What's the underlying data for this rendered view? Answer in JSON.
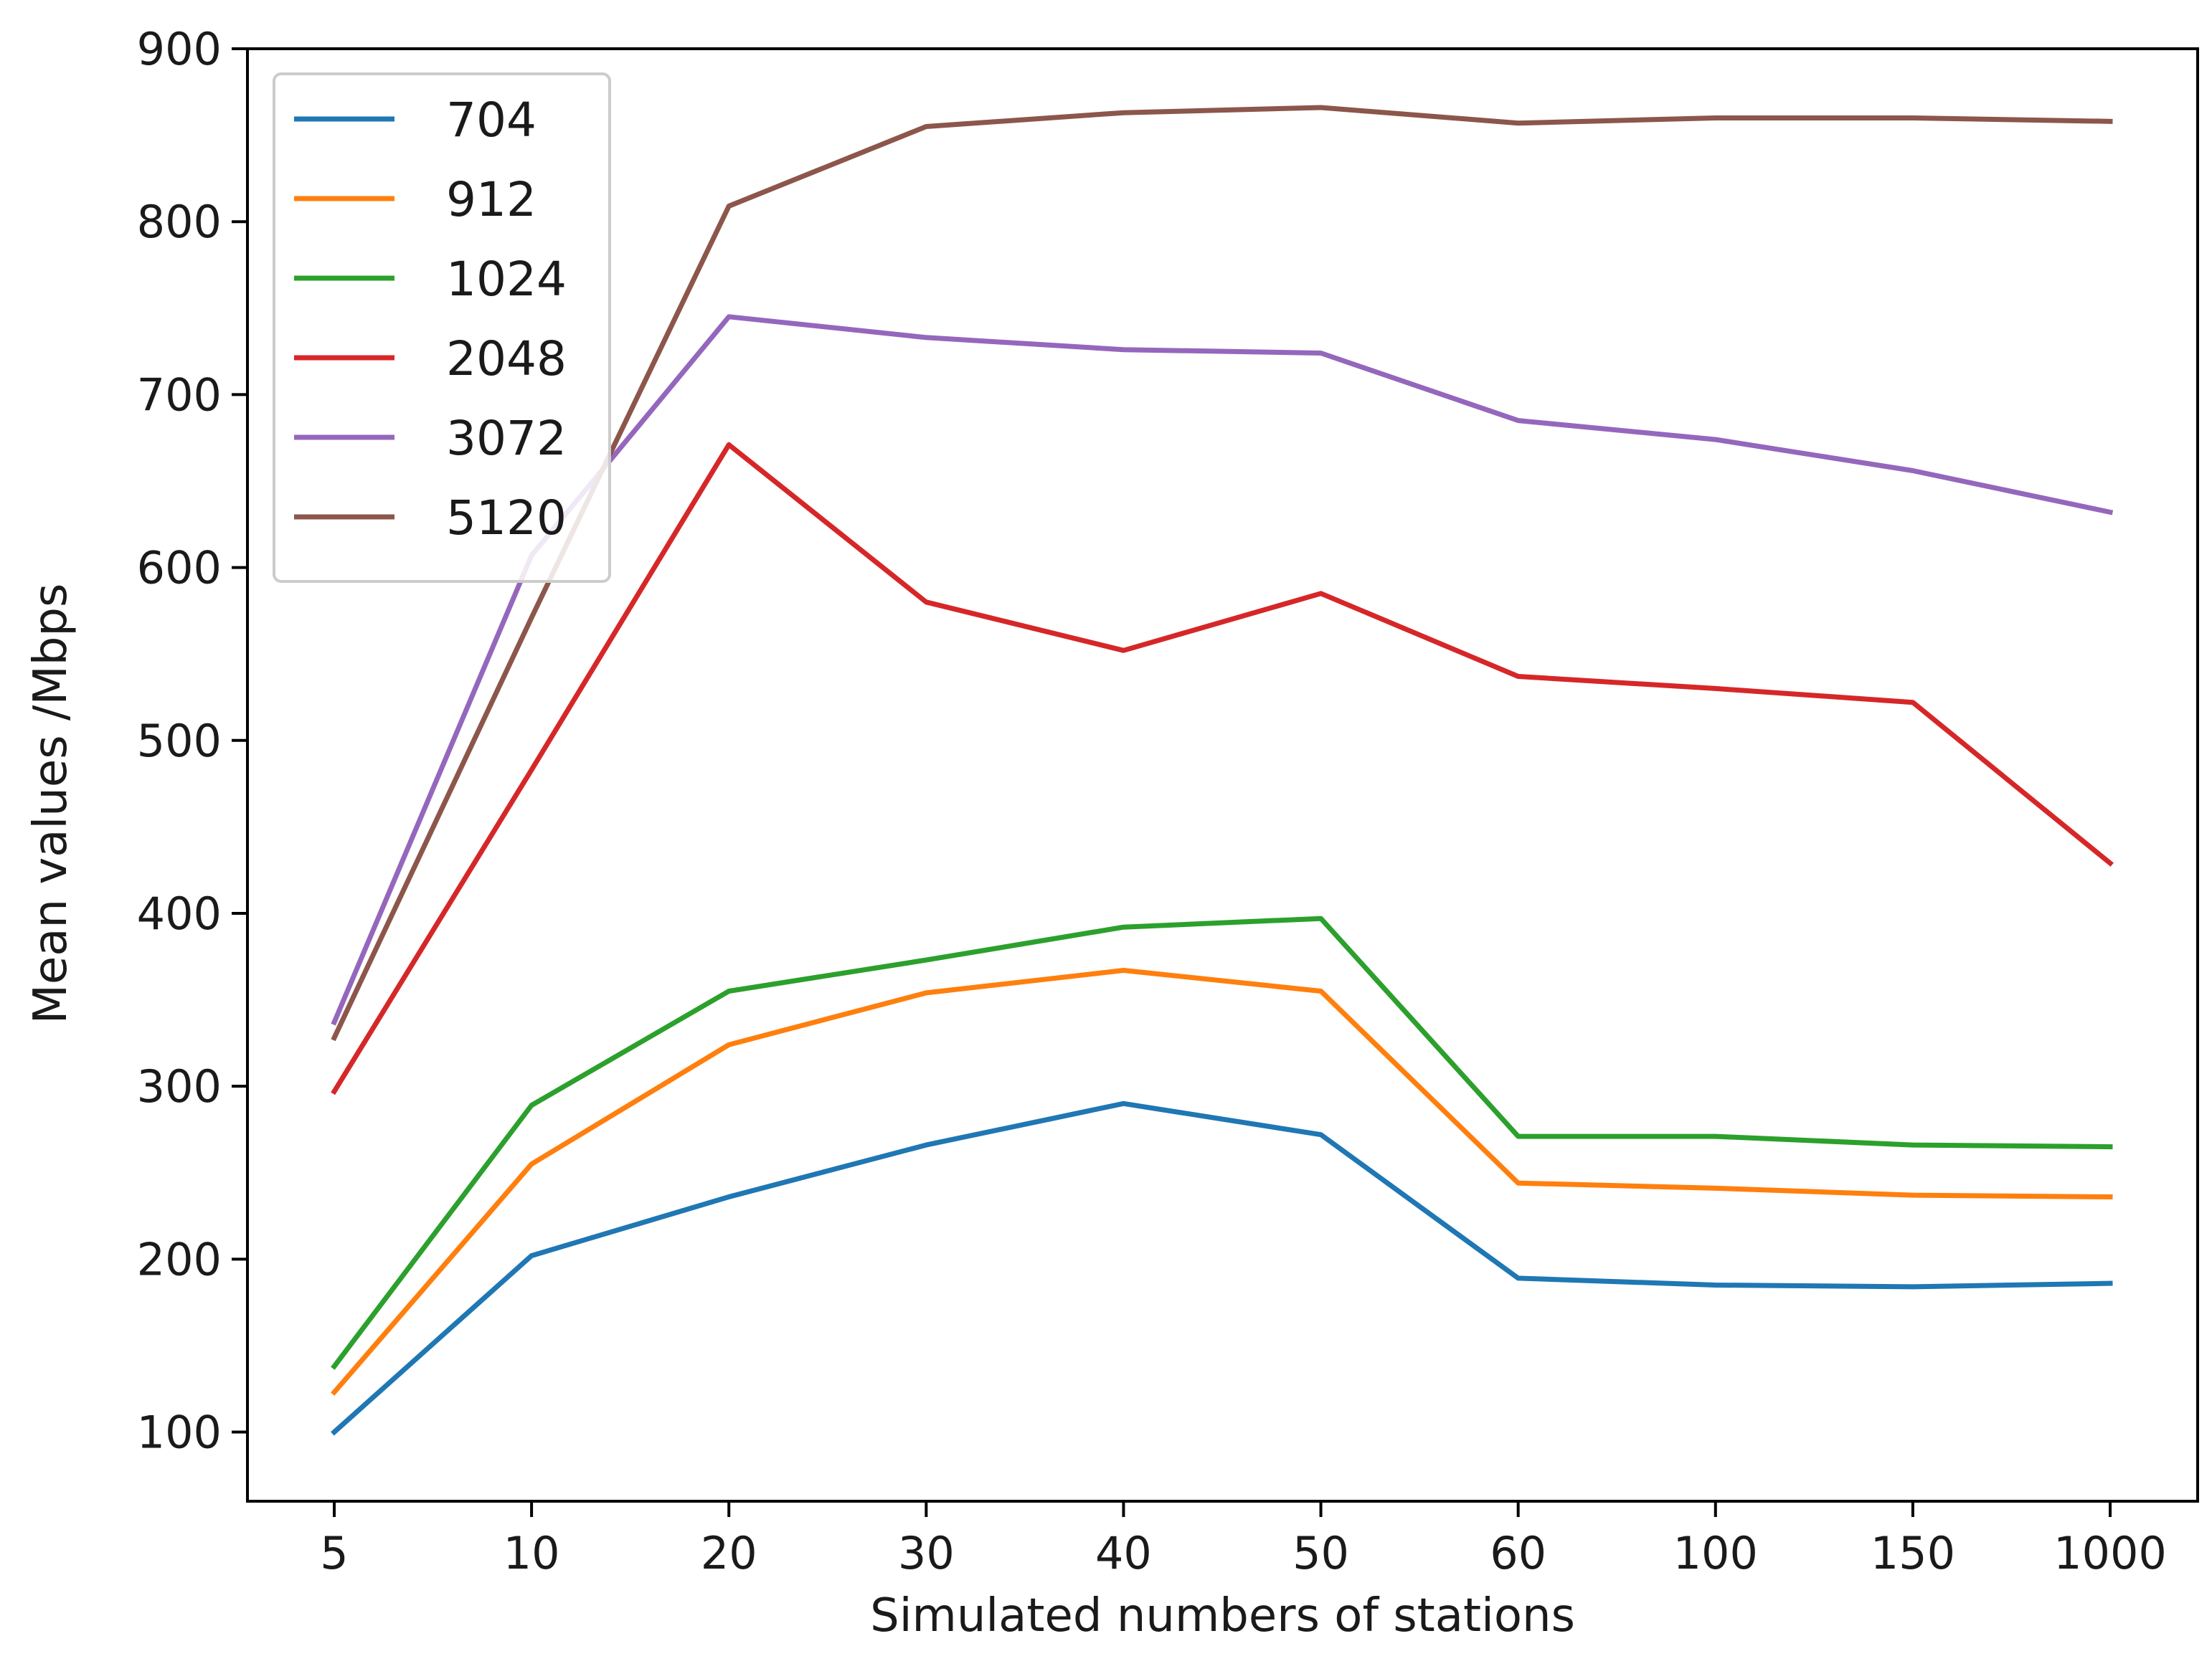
{
  "chart_data": {
    "type": "line",
    "title": "",
    "xlabel": "Simulated numbers of stations",
    "ylabel": "Mean values /Mbps",
    "categories": [
      "5",
      "10",
      "20",
      "30",
      "40",
      "50",
      "60",
      "100",
      "150",
      "1000"
    ],
    "ylim": [
      60,
      900
    ],
    "yticks": [
      100,
      200,
      300,
      400,
      500,
      600,
      700,
      800,
      900
    ],
    "grid": false,
    "legend_position": "top-left",
    "series": [
      {
        "name": "704",
        "color": "#1f77b4",
        "values": [
          100,
          202,
          236,
          266,
          290,
          272,
          189,
          185,
          184,
          186
        ]
      },
      {
        "name": "912",
        "color": "#ff7f0e",
        "values": [
          123,
          255,
          324,
          354,
          367,
          355,
          244,
          241,
          237,
          236
        ]
      },
      {
        "name": "1024",
        "color": "#2ca02c",
        "values": [
          138,
          289,
          355,
          373,
          392,
          397,
          271,
          271,
          266,
          265
        ]
      },
      {
        "name": "2048",
        "color": "#d62728",
        "values": [
          297,
          483,
          671,
          580,
          552,
          585,
          537,
          530,
          522,
          429
        ]
      },
      {
        "name": "3072",
        "color": "#9467bd",
        "values": [
          337,
          607,
          745,
          733,
          726,
          724,
          685,
          674,
          656,
          632
        ]
      },
      {
        "name": "5120",
        "color": "#8c564b",
        "values": [
          328,
          571,
          809,
          855,
          863,
          866,
          857,
          860,
          860,
          858
        ]
      }
    ]
  }
}
